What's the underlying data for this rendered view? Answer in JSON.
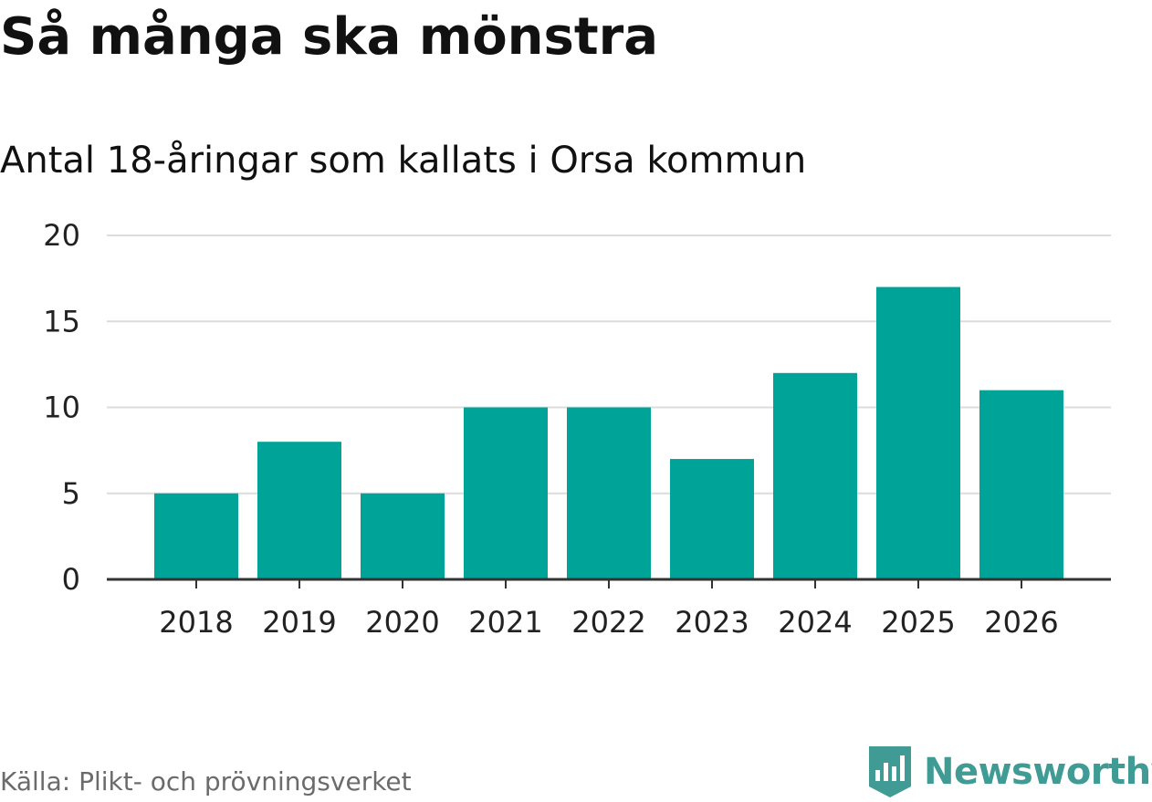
{
  "header": {
    "title": "Så många ska mönstra",
    "subtitle": "Antal 18-åringar som kallats i Orsa kommun"
  },
  "footer": {
    "source": "Källa: Plikt- och prövningsverket",
    "brand": "Newsworthy"
  },
  "colors": {
    "bar": "#00a398",
    "grid": "#dcdcdc",
    "axis": "#333333",
    "text": "#222222",
    "brand": "#3f9b94"
  },
  "chart_data": {
    "type": "bar",
    "title": "Så många ska mönstra",
    "subtitle": "Antal 18-åringar som kallats i Orsa kommun",
    "categories": [
      "2018",
      "2019",
      "2020",
      "2021",
      "2022",
      "2023",
      "2024",
      "2025",
      "2026"
    ],
    "values": [
      5,
      8,
      5,
      10,
      10,
      7,
      12,
      17,
      11
    ],
    "xlabel": "",
    "ylabel": "",
    "ylim": [
      0,
      20
    ],
    "yticks": [
      0,
      5,
      10,
      15,
      20
    ],
    "grid": true,
    "legend": "none"
  }
}
